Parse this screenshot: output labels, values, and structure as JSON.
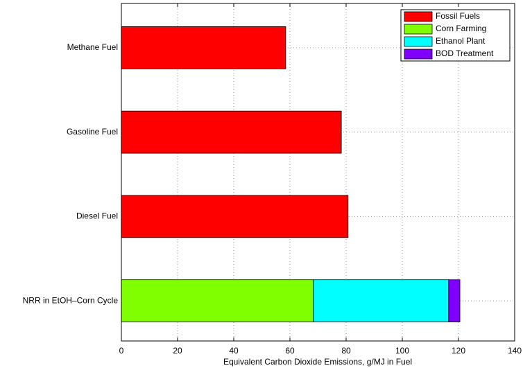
{
  "chart_data": {
    "type": "stacked-barh",
    "xlabel": "Equivalent Carbon Dioxide Emissions, g/MJ in Fuel",
    "categories": [
      "Methane Fuel",
      "Gasoline Fuel",
      "Diesel Fuel",
      "NRR in EtOH–Corn Cycle"
    ],
    "series": [
      {
        "name": "Fossil Fuels",
        "color": "#ff0000",
        "values": [
          58.5,
          78.3,
          80.7,
          0
        ]
      },
      {
        "name": "Corn Farming",
        "color": "#80ff00",
        "values": [
          0,
          0,
          0,
          68.4
        ]
      },
      {
        "name": "Ethanol Plant",
        "color": "#00ffff",
        "values": [
          0,
          0,
          0,
          48.1
        ]
      },
      {
        "name": "BOD Treatment",
        "color": "#8000ff",
        "values": [
          0,
          0,
          0,
          4.0
        ]
      }
    ],
    "xlim": [
      0,
      140
    ],
    "xticks": [
      0,
      20,
      40,
      60,
      80,
      100,
      120,
      140
    ],
    "grid": true,
    "legend": "upper right"
  }
}
